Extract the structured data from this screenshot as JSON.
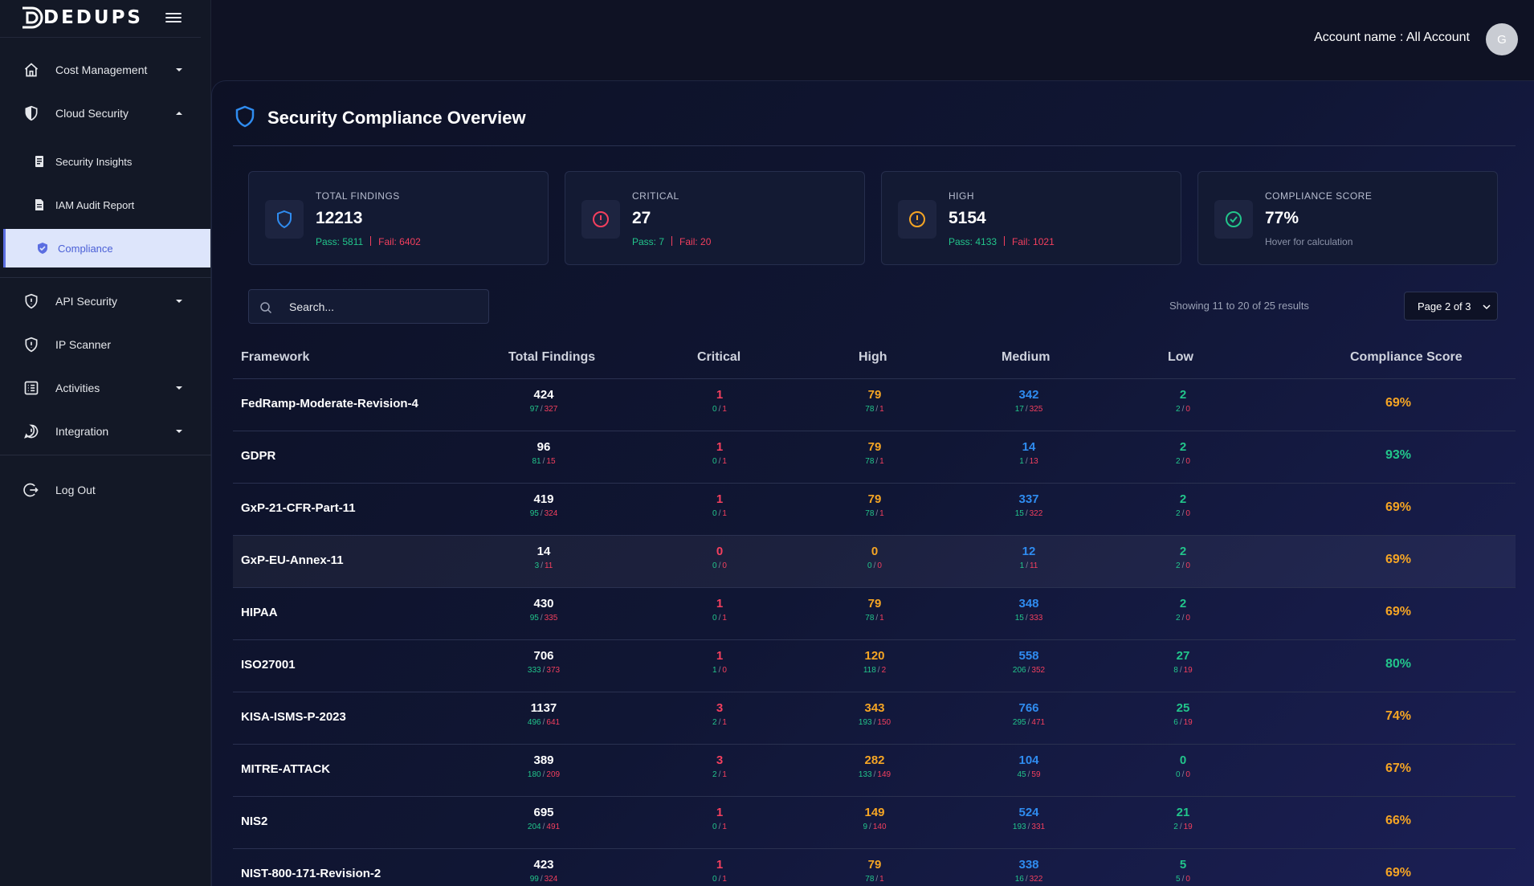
{
  "brand": {
    "name": "DEDUPS"
  },
  "header": {
    "account_label": "Account name : All Account",
    "avatar_initial": "G"
  },
  "sidebar": {
    "cost_management": "Cost Management",
    "cloud_security": "Cloud Security",
    "security_insights": "Security Insights",
    "iam_audit_report": "IAM Audit Report",
    "compliance": "Compliance",
    "api_security": "API Security",
    "ip_scanner": "IP Scanner",
    "activities": "Activities",
    "integration": "Integration",
    "log_out": "Log Out"
  },
  "page": {
    "title": "Security Compliance Overview"
  },
  "cards": {
    "total": {
      "title": "TOTAL FINDINGS",
      "value": "12213",
      "pass": "Pass: 5811",
      "fail": "Fail: 6402"
    },
    "critical": {
      "title": "CRITICAL",
      "value": "27",
      "pass": "Pass: 7",
      "fail": "Fail: 20"
    },
    "high": {
      "title": "HIGH",
      "value": "5154",
      "pass": "Pass: 4133",
      "fail": "Fail: 1021"
    },
    "score": {
      "title": "COMPLIANCE SCORE",
      "value": "77%",
      "hint": "Hover for calculation"
    }
  },
  "search": {
    "placeholder": "Search..."
  },
  "pagination": {
    "showing": "Showing 11 to 20 of 25 results",
    "selected": "Page 2 of 3"
  },
  "table": {
    "headers": {
      "framework": "Framework",
      "total": "Total Findings",
      "critical": "Critical",
      "high": "High",
      "medium": "Medium",
      "low": "Low",
      "score": "Compliance Score"
    },
    "rows": [
      {
        "name": "FedRamp-Moderate-Revision-4",
        "total": [
          "424",
          "97",
          "327"
        ],
        "critical": [
          "1",
          "0",
          "1"
        ],
        "high": [
          "79",
          "78",
          "1"
        ],
        "medium": [
          "342",
          "17",
          "325"
        ],
        "low": [
          "2",
          "2",
          "0"
        ],
        "score": "69%"
      },
      {
        "name": "GDPR",
        "total": [
          "96",
          "81",
          "15"
        ],
        "critical": [
          "1",
          "0",
          "1"
        ],
        "high": [
          "79",
          "78",
          "1"
        ],
        "medium": [
          "14",
          "1",
          "13"
        ],
        "low": [
          "2",
          "2",
          "0"
        ],
        "score": "93%"
      },
      {
        "name": "GxP-21-CFR-Part-11",
        "total": [
          "419",
          "95",
          "324"
        ],
        "critical": [
          "1",
          "0",
          "1"
        ],
        "high": [
          "79",
          "78",
          "1"
        ],
        "medium": [
          "337",
          "15",
          "322"
        ],
        "low": [
          "2",
          "2",
          "0"
        ],
        "score": "69%"
      },
      {
        "name": "GxP-EU-Annex-11",
        "total": [
          "14",
          "3",
          "11"
        ],
        "critical": [
          "0",
          "0",
          "0"
        ],
        "high": [
          "0",
          "0",
          "0"
        ],
        "medium": [
          "12",
          "1",
          "11"
        ],
        "low": [
          "2",
          "2",
          "0"
        ],
        "score": "69%"
      },
      {
        "name": "HIPAA",
        "total": [
          "430",
          "95",
          "335"
        ],
        "critical": [
          "1",
          "0",
          "1"
        ],
        "high": [
          "79",
          "78",
          "1"
        ],
        "medium": [
          "348",
          "15",
          "333"
        ],
        "low": [
          "2",
          "2",
          "0"
        ],
        "score": "69%"
      },
      {
        "name": "ISO27001",
        "total": [
          "706",
          "333",
          "373"
        ],
        "critical": [
          "1",
          "1",
          "0"
        ],
        "high": [
          "120",
          "118",
          "2"
        ],
        "medium": [
          "558",
          "206",
          "352"
        ],
        "low": [
          "27",
          "8",
          "19"
        ],
        "score": "80%"
      },
      {
        "name": "KISA-ISMS-P-2023",
        "total": [
          "1137",
          "496",
          "641"
        ],
        "critical": [
          "3",
          "2",
          "1"
        ],
        "high": [
          "343",
          "193",
          "150"
        ],
        "medium": [
          "766",
          "295",
          "471"
        ],
        "low": [
          "25",
          "6",
          "19"
        ],
        "score": "74%"
      },
      {
        "name": "MITRE-ATTACK",
        "total": [
          "389",
          "180",
          "209"
        ],
        "critical": [
          "3",
          "2",
          "1"
        ],
        "high": [
          "282",
          "133",
          "149"
        ],
        "medium": [
          "104",
          "45",
          "59"
        ],
        "low": [
          "0",
          "0",
          "0"
        ],
        "score": "67%"
      },
      {
        "name": "NIS2",
        "total": [
          "695",
          "204",
          "491"
        ],
        "critical": [
          "1",
          "0",
          "1"
        ],
        "high": [
          "149",
          "9",
          "140"
        ],
        "medium": [
          "524",
          "193",
          "331"
        ],
        "low": [
          "21",
          "2",
          "19"
        ],
        "score": "66%"
      },
      {
        "name": "NIST-800-171-Revision-2",
        "total": [
          "423",
          "99",
          "324"
        ],
        "critical": [
          "1",
          "0",
          "1"
        ],
        "high": [
          "79",
          "78",
          "1"
        ],
        "medium": [
          "338",
          "16",
          "322"
        ],
        "low": [
          "5",
          "5",
          "0"
        ],
        "score": "69%"
      }
    ]
  },
  "colors": {
    "pass": "#22c58b",
    "fail": "#f43f5e",
    "high": "#f5a524",
    "medium": "#2f8cf0",
    "score_warn": "#f5a524",
    "score_good": "#22c58b",
    "active_nav_bg": "#dde5fb"
  }
}
